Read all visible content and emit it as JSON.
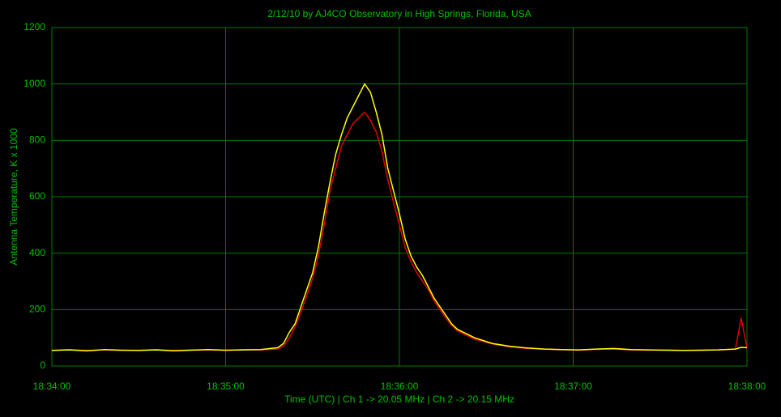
{
  "chart_data": {
    "type": "line",
    "title": "2/12/10  by  AJ4CO Observatory  in  High Springs, Florida, USA",
    "x_label": "Time (UTC)  |  Ch 1 -> 20.05 MHz  |  Ch 2 -> 20.15 MHz",
    "y_label": "Antenna Temperature, K x 1000",
    "x": [
      67440,
      67446,
      67452,
      67458,
      67464,
      67470,
      67476,
      67482,
      67488,
      67494,
      67500,
      67506,
      67512,
      67518,
      67520,
      67522,
      67524,
      67526,
      67528,
      67530,
      67532,
      67534,
      67536,
      67538,
      67540,
      67542,
      67544,
      67546,
      67548,
      67550,
      67552,
      67554,
      67556,
      67558,
      67560,
      67562,
      67564,
      67566,
      67568,
      67570,
      67572,
      67574,
      67576,
      67578,
      67580,
      67586,
      67592,
      67598,
      67604,
      67610,
      67616,
      67622,
      67628,
      67634,
      67640,
      67646,
      67652,
      67658,
      67664,
      67670,
      67676,
      67678,
      67680
    ],
    "series": [
      {
        "color": "#e00000",
        "values": [
          56,
          58,
          55,
          57,
          55,
          56,
          58,
          55,
          57,
          57,
          55,
          58,
          57,
          60,
          70,
          100,
          140,
          190,
          250,
          310,
          390,
          500,
          620,
          700,
          780,
          820,
          860,
          880,
          900,
          870,
          830,
          760,
          660,
          580,
          500,
          420,
          370,
          330,
          300,
          270,
          230,
          200,
          170,
          145,
          125,
          95,
          78,
          68,
          62,
          60,
          58,
          56,
          59,
          60,
          57,
          56,
          57,
          55,
          56,
          57,
          60,
          170,
          62
        ]
      },
      {
        "color": "#ffff00",
        "values": [
          55,
          57,
          54,
          58,
          56,
          55,
          57,
          54,
          56,
          58,
          56,
          57,
          58,
          65,
          80,
          120,
          150,
          210,
          270,
          330,
          420,
          540,
          650,
          750,
          820,
          880,
          920,
          960,
          1000,
          970,
          900,
          820,
          700,
          620,
          540,
          450,
          390,
          350,
          320,
          280,
          240,
          210,
          180,
          150,
          130,
          100,
          80,
          70,
          64,
          60,
          58,
          57,
          60,
          62,
          58,
          57,
          56,
          55,
          56,
          57,
          60,
          66,
          65
        ]
      }
    ],
    "xlim": [
      67440,
      67680
    ],
    "xticks": [
      {
        "value": 67440,
        "label": "18:34:00"
      },
      {
        "value": 67500,
        "label": "18:35:00"
      },
      {
        "value": 67560,
        "label": "18:36:00"
      },
      {
        "value": 67620,
        "label": "18:37:00"
      },
      {
        "value": 67680,
        "label": "18:38:00"
      }
    ],
    "ylim": [
      0,
      1200
    ],
    "yticks": [
      0,
      200,
      400,
      600,
      800,
      1000,
      1200
    ],
    "grid": true,
    "grid_color": "#007a00",
    "text_color": "#00c000",
    "background": "#000000"
  }
}
